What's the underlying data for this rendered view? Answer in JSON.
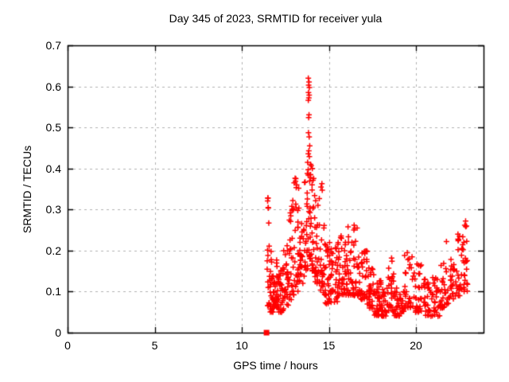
{
  "title": "Day 345 of 2023, SRMTID for receiver yula",
  "chart_data": {
    "type": "scatter",
    "title": "Day 345 of 2023, SRMTID for receiver yula",
    "xlabel": "GPS time / hours",
    "ylabel": "SRMTID / TECUs",
    "xlim": [
      0,
      23.88
    ],
    "ylim": [
      0,
      0.7
    ],
    "xticks": [
      0,
      5,
      10,
      15,
      20
    ],
    "xtick_labels": [
      "0",
      "5",
      "10",
      "15",
      "20"
    ],
    "yticks": [
      0,
      0.1,
      0.2,
      0.3,
      0.4,
      0.5,
      0.6,
      0.7
    ],
    "ytick_labels": [
      "0",
      "0.1",
      "0.2",
      "0.3",
      "0.4",
      "0.5",
      "0.6",
      "0.7"
    ],
    "grid": true,
    "legend": "none",
    "marker": "plus",
    "series_color": "#ff0000",
    "grid_color": "#b0b0b0",
    "border_color": "#000000",
    "background_color": "#ffffff",
    "start_marker": {
      "x": 11.42,
      "y": 0,
      "shape": "filled-square"
    },
    "note": "dense scatter of red plus markers, GPS time 11.4h to 23.0h; bands are [t_start_h, t_end_h, y_min_TECU, y_max_TECU, n_points] envelopes read from the plot",
    "bands": [
      [
        11.45,
        11.6,
        0.06,
        0.33,
        16
      ],
      [
        11.6,
        11.8,
        0.05,
        0.22,
        26
      ],
      [
        11.8,
        12.1,
        0.06,
        0.2,
        34
      ],
      [
        12.1,
        12.4,
        0.05,
        0.16,
        30
      ],
      [
        12.4,
        12.7,
        0.06,
        0.22,
        26
      ],
      [
        12.7,
        13.0,
        0.08,
        0.31,
        28
      ],
      [
        13.0,
        13.3,
        0.1,
        0.38,
        28
      ],
      [
        13.3,
        13.6,
        0.12,
        0.28,
        26
      ],
      [
        13.6,
        13.8,
        0.15,
        0.4,
        22
      ],
      [
        13.8,
        14.0,
        0.18,
        0.42,
        24
      ],
      [
        14.0,
        14.2,
        0.15,
        0.4,
        22
      ],
      [
        14.2,
        14.5,
        0.12,
        0.35,
        26
      ],
      [
        14.5,
        14.8,
        0.09,
        0.27,
        26
      ],
      [
        14.8,
        15.1,
        0.07,
        0.22,
        28
      ],
      [
        15.1,
        15.5,
        0.07,
        0.21,
        30
      ],
      [
        15.5,
        15.9,
        0.09,
        0.24,
        30
      ],
      [
        15.9,
        16.3,
        0.09,
        0.26,
        32
      ],
      [
        16.3,
        16.8,
        0.09,
        0.26,
        36
      ],
      [
        16.8,
        17.2,
        0.08,
        0.2,
        32
      ],
      [
        17.2,
        17.6,
        0.06,
        0.17,
        32
      ],
      [
        17.6,
        18.0,
        0.04,
        0.13,
        34
      ],
      [
        18.0,
        18.4,
        0.04,
        0.12,
        30
      ],
      [
        18.4,
        18.75,
        0.05,
        0.18,
        26
      ],
      [
        18.75,
        19.3,
        0.04,
        0.11,
        36
      ],
      [
        19.3,
        19.9,
        0.06,
        0.19,
        32
      ],
      [
        19.9,
        20.4,
        0.05,
        0.17,
        30
      ],
      [
        20.4,
        20.9,
        0.04,
        0.13,
        30
      ],
      [
        20.9,
        21.4,
        0.04,
        0.14,
        30
      ],
      [
        21.4,
        21.9,
        0.06,
        0.17,
        28
      ],
      [
        21.9,
        22.4,
        0.08,
        0.18,
        26
      ],
      [
        22.4,
        22.7,
        0.09,
        0.24,
        22
      ],
      [
        22.7,
        23.0,
        0.1,
        0.27,
        22
      ]
    ],
    "extra_points": [
      [
        13.82,
        0.62
      ],
      [
        13.86,
        0.611
      ],
      [
        13.84,
        0.603
      ],
      [
        13.88,
        0.597
      ],
      [
        13.83,
        0.585
      ],
      [
        13.87,
        0.579
      ],
      [
        13.85,
        0.572
      ],
      [
        13.82,
        0.566
      ],
      [
        13.86,
        0.531
      ],
      [
        13.84,
        0.524
      ],
      [
        13.83,
        0.487
      ],
      [
        13.87,
        0.477
      ],
      [
        13.85,
        0.443
      ],
      [
        13.82,
        0.436
      ],
      [
        13.88,
        0.429
      ],
      [
        13.9,
        0.455
      ],
      [
        13.78,
        0.415
      ],
      [
        14.05,
        0.4
      ],
      [
        13.95,
        0.385
      ],
      [
        11.5,
        0.328
      ],
      [
        11.52,
        0.305
      ],
      [
        12.93,
        0.322
      ],
      [
        13.1,
        0.375
      ],
      [
        13.15,
        0.36
      ],
      [
        14.55,
        0.355
      ],
      [
        14.6,
        0.363
      ],
      [
        14.62,
        0.347
      ],
      [
        16.45,
        0.262
      ],
      [
        16.1,
        0.258
      ],
      [
        21.75,
        0.222
      ],
      [
        22.85,
        0.272
      ],
      [
        22.8,
        0.262
      ],
      [
        19.5,
        0.195
      ],
      [
        18.6,
        0.182
      ]
    ],
    "seed": 987654321
  }
}
